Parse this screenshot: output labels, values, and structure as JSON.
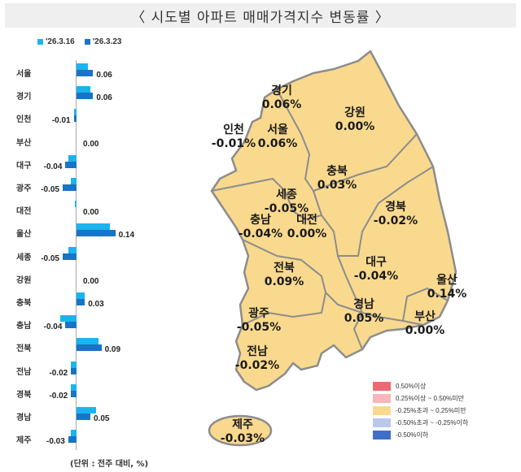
{
  "title": "〈 시도별 아파트 매매가격지수 변동률 〉",
  "legend": {
    "series1": "'26.3.16",
    "series2": "'26.3.23",
    "color1": "#1ab4ef",
    "color2": "#1874c8"
  },
  "unit_note": "(단위 : 전주 대비, %)",
  "chart_data": {
    "type": "bar",
    "orientation": "horizontal",
    "title": "시도별 아파트 매매가격지수 변동률",
    "xlabel": "",
    "ylabel": "",
    "categories": [
      "서울",
      "경기",
      "인천",
      "부산",
      "대구",
      "광주",
      "대전",
      "울산",
      "세종",
      "강원",
      "충북",
      "충남",
      "전북",
      "전남",
      "경북",
      "경남",
      "제주"
    ],
    "series": [
      {
        "name": "'26.3.16",
        "values": [
          0.04,
          0.05,
          -0.01,
          0.0,
          -0.03,
          -0.02,
          -0.005,
          0.12,
          -0.03,
          0.0,
          0.03,
          -0.06,
          0.08,
          -0.02,
          -0.02,
          0.07,
          -0.02
        ]
      },
      {
        "name": "'26.3.23",
        "values": [
          0.06,
          0.06,
          -0.01,
          0.0,
          -0.04,
          -0.05,
          0.0,
          0.14,
          -0.05,
          0.0,
          0.03,
          -0.04,
          0.09,
          -0.02,
          -0.02,
          0.05,
          -0.03
        ]
      }
    ],
    "data_labels": [
      "0.06",
      "0.06",
      "-0.01",
      "0.00",
      "-0.04",
      "-0.05",
      "0.00",
      "0.14",
      "-0.05",
      "0.00",
      "0.03",
      "-0.04",
      "0.09",
      "-0.02",
      "-0.02",
      "0.05",
      "-0.03"
    ],
    "unit": "전주 대비, %"
  },
  "map": {
    "regions": [
      {
        "name": "경기",
        "value": "0.06%"
      },
      {
        "name": "강원",
        "value": "0.00%"
      },
      {
        "name": "인천",
        "value": "-0.01%"
      },
      {
        "name": "서울",
        "value": "0.06%"
      },
      {
        "name": "충북",
        "value": "0.03%"
      },
      {
        "name": "세종",
        "value": "-0.05%"
      },
      {
        "name": "경북",
        "value": "-0.02%"
      },
      {
        "name": "충남",
        "value": "-0.04%"
      },
      {
        "name": "대전",
        "value": "0.00%"
      },
      {
        "name": "전북",
        "value": "0.09%"
      },
      {
        "name": "대구",
        "value": "-0.04%"
      },
      {
        "name": "울산",
        "value": "0.14%"
      },
      {
        "name": "광주",
        "value": "-0.05%"
      },
      {
        "name": "경남",
        "value": "0.05%"
      },
      {
        "name": "부산",
        "value": "0.00%"
      },
      {
        "name": "전남",
        "value": "-0.02%"
      },
      {
        "name": "제주",
        "value": "-0.03%"
      }
    ],
    "fill_color": "#f9d98e",
    "border_color": "#8c8c8c",
    "legend": [
      {
        "label": "0.50%이상",
        "color": "#ec6a72"
      },
      {
        "label": "0.25%이상 ~ 0.50%미만",
        "color": "#f6b6bc"
      },
      {
        "label": "-0.25%초과 ~ 0.25%미만",
        "color": "#f9d98e"
      },
      {
        "label": "-0.50%초과 ~ -0.25%이하",
        "color": "#b8c9ea"
      },
      {
        "label": "-0.50%이하",
        "color": "#3f6fc8"
      }
    ]
  }
}
